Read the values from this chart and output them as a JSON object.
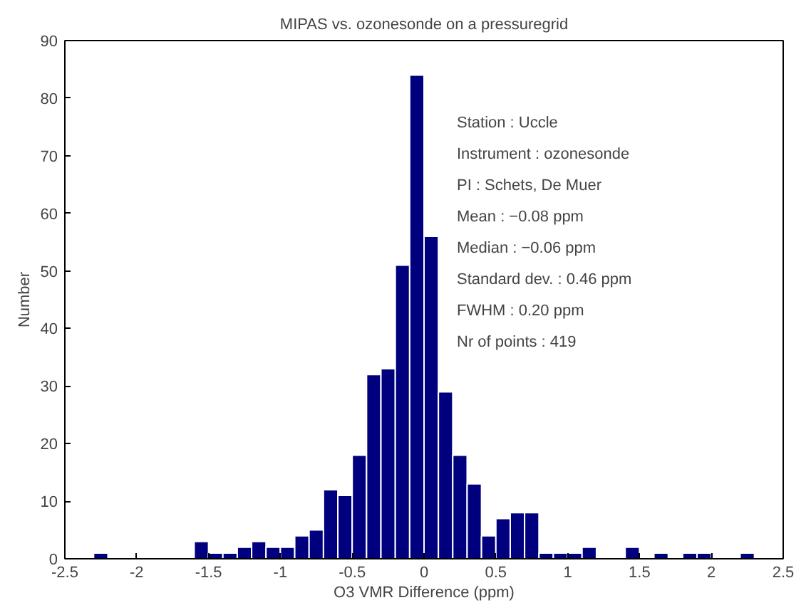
{
  "chart_data": {
    "type": "histogram",
    "title": "MIPAS vs. ozonesonde on a pressuregrid",
    "xlabel": "O3 VMR Difference (ppm)",
    "ylabel": "Number",
    "bins": [
      -2.3,
      -2.2,
      -2.1,
      -2.0,
      -1.9,
      -1.8,
      -1.7,
      -1.6,
      -1.5,
      -1.4,
      -1.3,
      -1.2,
      -1.1,
      -1.0,
      -0.9,
      -0.8,
      -0.7,
      -0.6,
      -0.5,
      -0.4,
      -0.3,
      -0.2,
      -0.1,
      0.0,
      0.1,
      0.2,
      0.3,
      0.4,
      0.5,
      0.6,
      0.7,
      0.8,
      0.9,
      1.0,
      1.1,
      1.2,
      1.3,
      1.4,
      1.5,
      1.6,
      1.7,
      1.8,
      1.9,
      2.0,
      2.1,
      2.2,
      2.3
    ],
    "values": [
      1,
      0,
      0,
      0,
      0,
      0,
      0,
      3,
      1,
      1,
      2,
      3,
      2,
      2,
      4,
      5,
      12,
      11,
      18,
      32,
      33,
      51,
      84,
      56,
      29,
      18,
      13,
      4,
      7,
      8,
      8,
      1,
      1,
      1,
      2,
      0,
      0,
      2,
      0,
      1,
      0,
      1,
      1,
      0,
      0,
      1
    ],
    "color": "#00007f",
    "xlim": [
      -2.5,
      2.5
    ],
    "xticks": [
      -2.5,
      -2,
      -1.5,
      -1,
      -0.5,
      0,
      0.5,
      1,
      1.5,
      2,
      2.5
    ],
    "ylim": [
      0,
      90
    ],
    "yticks": [
      0,
      10,
      20,
      30,
      40,
      50,
      60,
      70,
      80,
      90
    ],
    "grid": false,
    "annotations": [
      "Station : Uccle",
      "Instrument : ozonesonde",
      "PI : Schets, De Muer",
      "Mean : −0.08 ppm",
      "Median : −0.06 ppm",
      "Standard dev. : 0.46 ppm",
      "FWHM : 0.20 ppm",
      "Nr of points : 419"
    ]
  }
}
